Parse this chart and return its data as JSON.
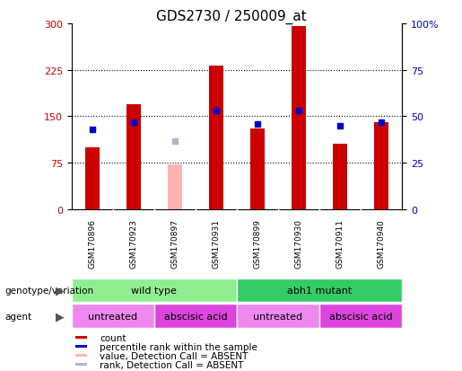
{
  "title": "GDS2730 / 250009_at",
  "samples": [
    "GSM170896",
    "GSM170923",
    "GSM170897",
    "GSM170931",
    "GSM170899",
    "GSM170930",
    "GSM170911",
    "GSM170940"
  ],
  "count_values": [
    100,
    170,
    null,
    232,
    130,
    295,
    105,
    140
  ],
  "rank_values": [
    43,
    47,
    null,
    53,
    46,
    53,
    45,
    47
  ],
  "absent_count": [
    null,
    null,
    72,
    null,
    null,
    null,
    null,
    null
  ],
  "absent_rank": [
    null,
    null,
    36.7,
    null,
    null,
    null,
    null,
    null
  ],
  "ylim_left": [
    0,
    300
  ],
  "ylim_right": [
    0,
    100
  ],
  "yticks_left": [
    0,
    75,
    150,
    225,
    300
  ],
  "yticks_right": [
    0,
    25,
    50,
    75,
    100
  ],
  "bar_width": 0.35,
  "count_color": "#cc0000",
  "rank_color": "#0000cc",
  "absent_count_color": "#ffb3b3",
  "absent_rank_color": "#b3b3cc",
  "bg_label": "#c0c0c0",
  "genotype_groups": [
    {
      "label": "wild type",
      "start": 0,
      "end": 4,
      "color": "#90ee90"
    },
    {
      "label": "abh1 mutant",
      "start": 4,
      "end": 8,
      "color": "#33cc66"
    }
  ],
  "agent_groups": [
    {
      "label": "untreated",
      "start": 0,
      "end": 2,
      "color": "#ee88ee"
    },
    {
      "label": "abscisic acid",
      "start": 2,
      "end": 4,
      "color": "#dd44dd"
    },
    {
      "label": "untreated",
      "start": 4,
      "end": 6,
      "color": "#ee88ee"
    },
    {
      "label": "abscisic acid",
      "start": 6,
      "end": 8,
      "color": "#dd44dd"
    }
  ],
  "legend_items": [
    {
      "label": "count",
      "color": "#cc0000"
    },
    {
      "label": "percentile rank within the sample",
      "color": "#0000cc"
    },
    {
      "label": "value, Detection Call = ABSENT",
      "color": "#ffb3b3"
    },
    {
      "label": "rank, Detection Call = ABSENT",
      "color": "#b3b3cc"
    }
  ]
}
